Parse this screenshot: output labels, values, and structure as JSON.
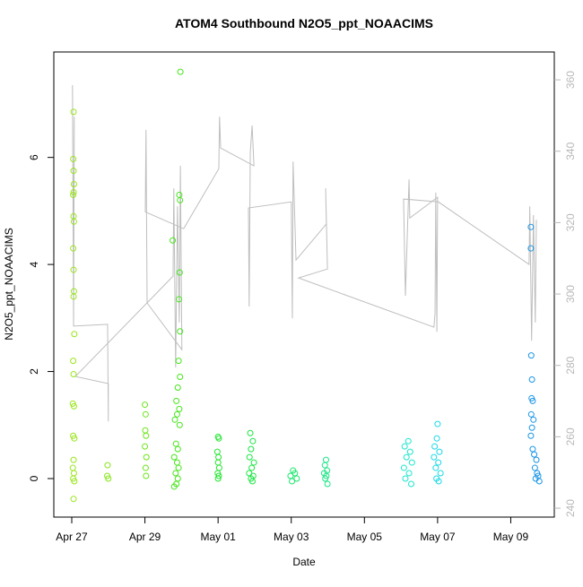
{
  "chart_data": {
    "type": "scatter",
    "title": "ATOM4 Southbound N2O5_ppt_NOAACIMS",
    "x_label": "Date",
    "y_label": "N2O5_ppt_NOAACIMS",
    "xlim": [
      -0.49,
      13.19
    ],
    "xticks": [
      {
        "value": 0,
        "label": "Apr 27"
      },
      {
        "value": 2,
        "label": "Apr 29"
      },
      {
        "value": 4,
        "label": "May 01"
      },
      {
        "value": 6,
        "label": "May 03"
      },
      {
        "value": 8,
        "label": "May 05"
      },
      {
        "value": 10,
        "label": "May 07"
      },
      {
        "value": 12,
        "label": "May 09"
      }
    ],
    "ylim": [
      -0.72,
      7.97
    ],
    "yticks": [
      0,
      2,
      4,
      6
    ],
    "y2lim": [
      237.5,
      367.8
    ],
    "y2ticks": [
      240,
      260,
      280,
      300,
      320,
      340,
      360
    ],
    "series": [
      {
        "color": "#99e619",
        "x": [
          0.05,
          0.04,
          0.05,
          0.06,
          0.05,
          0.04,
          0.05,
          0.06,
          0.04,
          0.05,
          0.06,
          0.05,
          0.07,
          0.04,
          0.05,
          0.03,
          0.06,
          0.04,
          0.07,
          0.05,
          0.03,
          0.06,
          0.04,
          0.07,
          0.05
        ],
        "values": [
          6.85,
          5.97,
          5.75,
          5.5,
          5.35,
          5.3,
          4.9,
          4.8,
          4.3,
          3.9,
          3.5,
          3.4,
          2.7,
          2.2,
          1.95,
          1.4,
          1.35,
          0.8,
          0.75,
          0.35,
          0.2,
          0.1,
          0,
          -0.05,
          -0.38
        ]
      },
      {
        "color": "#85e619",
        "x": [
          0.98,
          0.97,
          1.0
        ],
        "values": [
          0.25,
          0.05,
          0.0
        ]
      },
      {
        "color": "#6ae619",
        "x": [
          2.0,
          2.02,
          2.01,
          2.03,
          2.0,
          2.04,
          2.02,
          2.03
        ],
        "values": [
          1.38,
          1.2,
          0.9,
          0.8,
          0.6,
          0.4,
          0.2,
          0.05
        ]
      },
      {
        "color": "#45e61a",
        "x": [
          2.97,
          2.94,
          2.96,
          2.76,
          2.95,
          2.93,
          2.96,
          2.92,
          2.96,
          2.9,
          2.86,
          2.94,
          2.88,
          2.82,
          2.95,
          2.85,
          2.9,
          2.8,
          2.88,
          2.92,
          2.84,
          2.9,
          2.86,
          2.8
        ],
        "values": [
          7.6,
          5.3,
          5.2,
          4.45,
          3.85,
          3.35,
          2.75,
          2.2,
          1.9,
          1.7,
          1.45,
          1.3,
          1.2,
          1.1,
          1.0,
          0.65,
          0.55,
          0.4,
          0.3,
          0.2,
          0.1,
          0,
          -0.1,
          -0.15
        ]
      },
      {
        "color": "#22e62e",
        "x": [
          4.0,
          4.02,
          3.98,
          4.01,
          4.0,
          4.03,
          3.99,
          4.02,
          4.0
        ],
        "values": [
          0.78,
          0.75,
          0.5,
          0.4,
          0.3,
          0.2,
          0.1,
          0.05,
          0
        ]
      },
      {
        "color": "#1ae642",
        "x": [
          4.88,
          4.95,
          4.9,
          4.86,
          4.98,
          4.92,
          4.85,
          4.96,
          4.9,
          4.94
        ],
        "values": [
          0.85,
          0.7,
          0.55,
          0.4,
          0.3,
          0.2,
          0.1,
          0.05,
          0,
          -0.05
        ]
      },
      {
        "color": "#1ae66b",
        "x": [
          6.05,
          6.1,
          5.98,
          6.15,
          6.02
        ],
        "values": [
          0.15,
          0.1,
          0.05,
          0,
          -0.05
        ]
      },
      {
        "color": "#1ae685",
        "x": [
          6.95,
          6.92,
          6.98,
          6.9,
          6.96,
          6.93,
          6.99
        ],
        "values": [
          0.35,
          0.25,
          0.15,
          0.1,
          0.05,
          0,
          -0.1
        ]
      },
      {
        "color": "#1ae6cc",
        "x": [
          9.2,
          9.1,
          9.25,
          9.15,
          9.3,
          9.08,
          9.22,
          9.12,
          9.28
        ],
        "values": [
          0.7,
          0.6,
          0.5,
          0.4,
          0.3,
          0.2,
          0.1,
          0,
          -0.1
        ]
      },
      {
        "color": "#1ad8e6",
        "x": [
          10.0,
          9.98,
          9.92,
          10.05,
          9.9,
          10.02,
          9.95,
          10.08,
          9.97,
          10.03
        ],
        "values": [
          1.02,
          0.75,
          0.6,
          0.5,
          0.4,
          0.3,
          0.2,
          0.1,
          0,
          -0.05
        ]
      },
      {
        "color": "#1a95e6",
        "x": [
          12.55,
          12.55,
          12.56,
          12.58,
          12.57,
          12.6,
          12.56,
          12.62,
          12.58,
          12.55,
          12.6,
          12.64,
          12.7,
          12.66,
          12.72,
          12.75,
          12.68,
          12.78
        ],
        "values": [
          4.7,
          4.3,
          2.3,
          1.85,
          1.5,
          1.45,
          1.2,
          1.1,
          0.95,
          0.8,
          0.55,
          0.45,
          0.35,
          0.2,
          0.1,
          0.05,
          0,
          -0.05
        ]
      },
      {
        "color": "#bebebe",
        "mode": "line",
        "axis": "y2",
        "x": [
          0.05,
          0.02,
          0.05,
          0.07,
          0.05,
          0.98,
          1.0,
          1.0,
          0.1,
          2.77,
          2.79,
          2.84,
          2.89,
          2.94,
          2.97,
          3.01,
          2.06,
          2.03,
          2.01,
          3.06,
          4.02,
          4.04,
          4.07,
          4.98,
          4.93,
          4.88,
          4.85,
          4.83,
          6.0,
          6.03,
          6.05,
          6.13,
          6.96,
          6.94,
          6.99,
          6.2,
          9.9,
          9.93,
          9.95,
          9.98,
          10.0,
          9.24,
          9.22,
          9.12,
          9.07,
          10.02,
          12.5,
          12.52,
          12.57,
          12.62,
          12.67,
          12.7
        ],
        "values": [
          291,
          358.5,
          307,
          349.7,
          291,
          291.5,
          264.3,
          274.9,
          276.9,
          305,
          329.6,
          279.4,
          324.6,
          292,
          335.9,
          284.4,
          297.5,
          346,
          323,
          318.3,
          335.1,
          349.7,
          340.9,
          335.9,
          347.2,
          339.6,
          296.5,
          324.1,
          325.8,
          293.2,
          337.1,
          309.5,
          319.6,
          329.6,
          307,
          304.5,
          290.7,
          294.5,
          328.4,
          289.4,
          327.1,
          321.3,
          332.1,
          299.5,
          326.6,
          325.8,
          308.3,
          324.6,
          286.9,
          322.1,
          292,
          320.8
        ]
      }
    ]
  }
}
